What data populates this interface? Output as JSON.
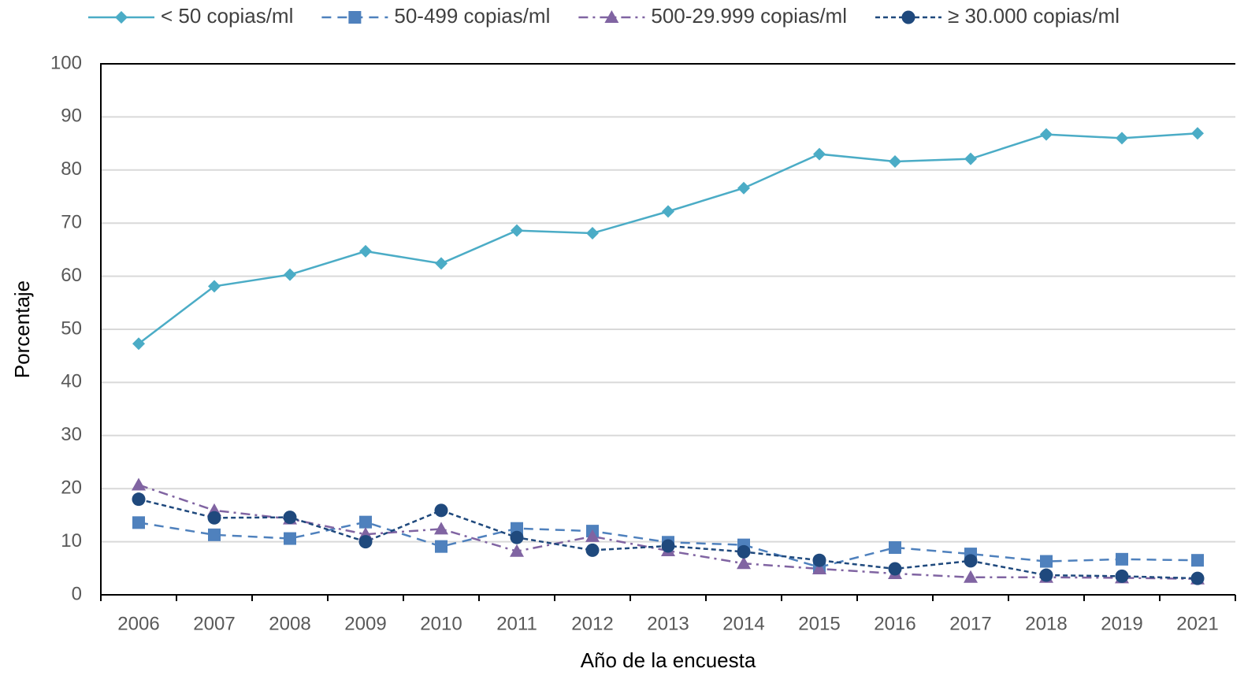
{
  "chart_data": {
    "type": "line",
    "x_label": "Año de la encuesta",
    "y_label": "Porcentaje",
    "categories": [
      "2006",
      "2007",
      "2008",
      "2009",
      "2010",
      "2011",
      "2012",
      "2013",
      "2014",
      "2015",
      "2016",
      "2017",
      "2018",
      "2019",
      "2021"
    ],
    "series": [
      {
        "name": "< 50 copias/ml",
        "color": "#4bacc6",
        "marker": "diamond",
        "dash": "solid",
        "values": [
          47.3,
          58.1,
          60.3,
          64.7,
          62.4,
          68.6,
          68.1,
          72.2,
          76.6,
          83.0,
          81.6,
          82.1,
          86.7,
          86.0,
          86.9
        ]
      },
      {
        "name": "50-499 copias/ml",
        "color": "#4f81bd",
        "marker": "square",
        "dash": "dashed",
        "values": [
          13.6,
          11.3,
          10.6,
          13.7,
          9.1,
          12.5,
          12.0,
          9.9,
          9.4,
          5.2,
          8.9,
          7.7,
          6.3,
          6.7,
          6.5
        ]
      },
      {
        "name": "500-29.999 copias/ml",
        "color": "#8064a2",
        "marker": "triangle",
        "dash": "dashdot",
        "values": [
          20.7,
          15.9,
          14.3,
          11.4,
          12.4,
          8.2,
          11.0,
          8.3,
          5.9,
          4.9,
          4.0,
          3.3,
          3.3,
          3.2,
          3.0
        ]
      },
      {
        "name": "≥ 30.000 copias/ml",
        "color": "#1f497d",
        "marker": "circle",
        "dash": "dotted",
        "values": [
          18.0,
          14.5,
          14.6,
          10.0,
          15.9,
          10.8,
          8.4,
          9.2,
          8.1,
          6.5,
          4.9,
          6.4,
          3.7,
          3.5,
          3.1
        ]
      }
    ],
    "ylim": [
      0,
      100
    ],
    "yticks": [
      0,
      10,
      20,
      30,
      40,
      50,
      60,
      70,
      80,
      90,
      100
    ],
    "grid": true,
    "legend": "top"
  }
}
